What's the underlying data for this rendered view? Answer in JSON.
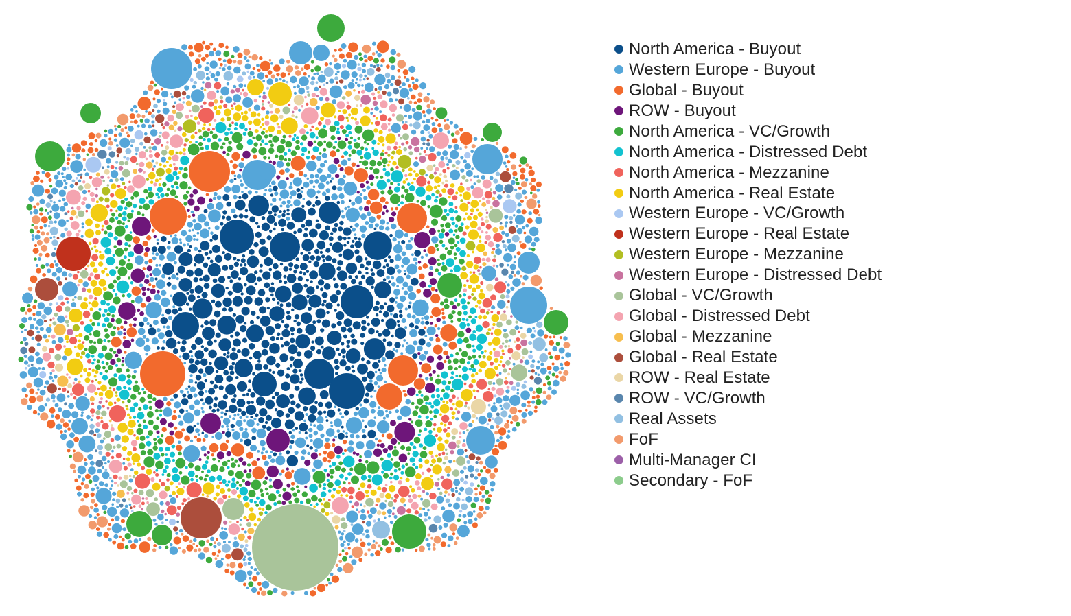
{
  "chart_data": {
    "type": "bubble-cluster",
    "series": [
      {
        "name": "North America - Buyout",
        "color": "#0b4f8a"
      },
      {
        "name": "Western Europe - Buyout",
        "color": "#55a6d9"
      },
      {
        "name": "Global - Buyout",
        "color": "#f26a2d"
      },
      {
        "name": "ROW - Buyout",
        "color": "#6e167a"
      },
      {
        "name": "North America - VC/Growth",
        "color": "#3daa3d"
      },
      {
        "name": "North America - Distressed Debt",
        "color": "#12c2d0"
      },
      {
        "name": "North America - Mezzanine",
        "color": "#f0635c"
      },
      {
        "name": "North America - Real Estate",
        "color": "#f2cc12"
      },
      {
        "name": "Western Europe - VC/Growth",
        "color": "#aac8f2"
      },
      {
        "name": "Western Europe - Real Estate",
        "color": "#c0311c"
      },
      {
        "name": "Western Europe - Mezzanine",
        "color": "#b2be22"
      },
      {
        "name": "Western Europe - Distressed Debt",
        "color": "#c9739f"
      },
      {
        "name": "Global - VC/Growth",
        "color": "#a9c49a"
      },
      {
        "name": "Global - Distressed Debt",
        "color": "#f4a4b0"
      },
      {
        "name": "Global - Mezzanine",
        "color": "#f7be4e"
      },
      {
        "name": "Global - Real Estate",
        "color": "#ac4e3c"
      },
      {
        "name": "ROW - Real Estate",
        "color": "#ead6a6"
      },
      {
        "name": "ROW - VC/Growth",
        "color": "#5986ad"
      },
      {
        "name": "Real Assets",
        "color": "#92c0e2"
      },
      {
        "name": "FoF",
        "color": "#f29a6c"
      },
      {
        "name": "Multi-Manager CI",
        "color": "#9c5fa8"
      },
      {
        "name": "Secondary - FoF",
        "color": "#8ccc8c"
      }
    ],
    "legend_position": "right",
    "grid": false,
    "axes": false
  }
}
